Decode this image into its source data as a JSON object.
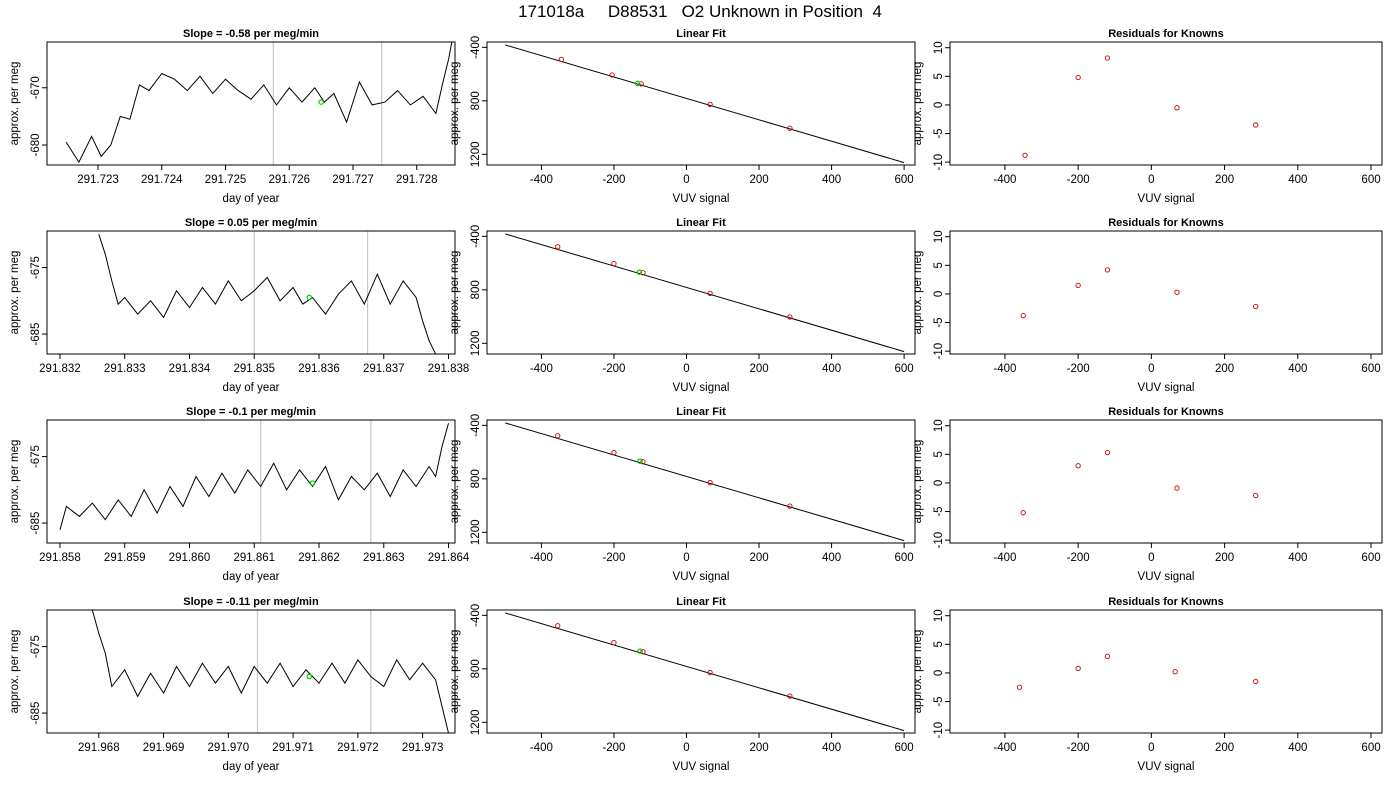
{
  "title": "171018a     D88531   O2 Unknown in Position  4",
  "colors": {
    "line": "#000000",
    "known_point": "#cc0000",
    "unknown_point": "#00cc00",
    "marker_line": "#c8c8c8",
    "axes": "#000000"
  },
  "chart_data": [
    {
      "type": "line",
      "title": "Slope =  -0.58  per meg/min",
      "xlabel": "day of year",
      "ylabel": "approx. per meg",
      "xlim": [
        291.7222,
        291.7286
      ],
      "ylim": [
        -683.5,
        -662.0
      ],
      "xticks": [
        291.723,
        291.724,
        291.725,
        291.726,
        291.727,
        291.728
      ],
      "xtick_labels": [
        "291.723",
        "291.724",
        "291.725",
        "291.726",
        "291.727",
        "291.728"
      ],
      "yticks": [
        -680,
        -670
      ],
      "ytick_labels": [
        "-680",
        "-670"
      ],
      "vlines": [
        291.72575,
        291.72745
      ],
      "unknown_point": {
        "x": 291.7265,
        "y": -672.5
      },
      "trace": [
        [
          291.7225,
          -679.5
        ],
        [
          291.7227,
          -683.0
        ],
        [
          291.7229,
          -678.5
        ],
        [
          291.72305,
          -682.0
        ],
        [
          291.7232,
          -680.0
        ],
        [
          291.72335,
          -675.0
        ],
        [
          291.7235,
          -675.5
        ],
        [
          291.72365,
          -669.5
        ],
        [
          291.7238,
          -670.5
        ],
        [
          291.724,
          -667.5
        ],
        [
          291.7242,
          -668.5
        ],
        [
          291.7244,
          -670.5
        ],
        [
          291.7246,
          -668.0
        ],
        [
          291.7248,
          -671.0
        ],
        [
          291.725,
          -668.5
        ],
        [
          291.7252,
          -670.5
        ],
        [
          291.7254,
          -672.0
        ],
        [
          291.7256,
          -669.5
        ],
        [
          291.7258,
          -673.0
        ],
        [
          291.726,
          -670.0
        ],
        [
          291.7262,
          -672.5
        ],
        [
          291.7264,
          -670.0
        ],
        [
          291.72655,
          -672.5
        ],
        [
          291.7267,
          -671.0
        ],
        [
          291.7269,
          -676.0
        ],
        [
          291.7271,
          -669.0
        ],
        [
          291.7273,
          -673.0
        ],
        [
          291.7275,
          -672.5
        ],
        [
          291.7277,
          -670.5
        ],
        [
          291.7279,
          -673.0
        ],
        [
          291.7281,
          -671.5
        ],
        [
          291.7283,
          -674.5
        ],
        [
          291.7284,
          -669.5
        ],
        [
          291.7285,
          -665.0
        ],
        [
          291.72855,
          -662.0
        ]
      ]
    },
    {
      "type": "scatter",
      "title": "Linear Fit",
      "xlabel": "VUV signal",
      "ylabel": "approx. per meg",
      "xlim": [
        -550,
        630
      ],
      "ylim": [
        -1280,
        -360
      ],
      "xticks": [
        -400,
        -200,
        0,
        200,
        400,
        600
      ],
      "xtick_labels": [
        "-400",
        "-200",
        "0",
        "200",
        "400",
        "600"
      ],
      "yticks": [
        -400,
        -800,
        -1200
      ],
      "ytick_labels": [
        "-400",
        "800",
        "1200"
      ],
      "fit_line": {
        "x": [
          -500,
          600
        ],
        "y": [
          -382,
          -1262
        ]
      },
      "knowns": {
        "x": [
          -345,
          -205,
          -125,
          65,
          285
        ],
        "y": [
          -490,
          -607,
          -673,
          -827,
          -1005
        ]
      },
      "unknown_point": {
        "x": -135,
        "y": -670
      }
    },
    {
      "type": "scatter",
      "title": "Residuals for Knowns",
      "xlabel": "VUV signal",
      "ylabel": "approx. per meg",
      "xlim": [
        -550,
        630
      ],
      "ylim": [
        -10.5,
        11.0
      ],
      "xticks": [
        -400,
        -200,
        0,
        200,
        400,
        600
      ],
      "xtick_labels": [
        "-400",
        "-200",
        "0",
        "200",
        "400",
        "600"
      ],
      "yticks": [
        -10,
        -5,
        0,
        5,
        10
      ],
      "ytick_labels": [
        "-10",
        "-5",
        "0",
        "5",
        "10"
      ],
      "knowns": {
        "x": [
          -345,
          -200,
          -120,
          70,
          285
        ],
        "y": [
          -8.8,
          4.8,
          8.2,
          -0.5,
          -3.5
        ]
      }
    },
    {
      "type": "line",
      "title": "Slope =  0.05  per meg/min",
      "xlabel": "day of year",
      "ylabel": "approx. per meg",
      "xlim": [
        291.8318,
        291.8381
      ],
      "ylim": [
        -688.0,
        -669.5
      ],
      "xticks": [
        291.832,
        291.833,
        291.834,
        291.835,
        291.836,
        291.837,
        291.838
      ],
      "xtick_labels": [
        "291.832",
        "291.833",
        "291.834",
        "291.835",
        "291.836",
        "291.837",
        "291.838"
      ],
      "yticks": [
        -685,
        -675
      ],
      "ytick_labels": [
        "-685",
        "-675"
      ],
      "vlines": [
        291.835,
        291.83675
      ],
      "unknown_point": {
        "x": 291.83585,
        "y": -679.5
      },
      "trace": [
        [
          291.8326,
          -670.0
        ],
        [
          291.8327,
          -673.0
        ],
        [
          291.8328,
          -677.0
        ],
        [
          291.8329,
          -680.5
        ],
        [
          291.833,
          -679.5
        ],
        [
          291.8332,
          -682.0
        ],
        [
          291.8334,
          -680.0
        ],
        [
          291.8336,
          -682.5
        ],
        [
          291.8338,
          -678.5
        ],
        [
          291.834,
          -681.0
        ],
        [
          291.8342,
          -678.0
        ],
        [
          291.8344,
          -680.5
        ],
        [
          291.8346,
          -677.0
        ],
        [
          291.8348,
          -680.0
        ],
        [
          291.835,
          -678.5
        ],
        [
          291.8352,
          -676.5
        ],
        [
          291.8354,
          -680.0
        ],
        [
          291.8356,
          -678.0
        ],
        [
          291.83575,
          -680.5
        ],
        [
          291.8359,
          -679.5
        ],
        [
          291.8361,
          -682.0
        ],
        [
          291.8363,
          -679.0
        ],
        [
          291.8365,
          -677.0
        ],
        [
          291.8367,
          -680.5
        ],
        [
          291.8369,
          -676.0
        ],
        [
          291.8371,
          -680.5
        ],
        [
          291.8373,
          -677.0
        ],
        [
          291.8375,
          -679.5
        ],
        [
          291.8376,
          -683.0
        ],
        [
          291.8377,
          -686.0
        ],
        [
          291.8378,
          -688.0
        ]
      ]
    },
    {
      "type": "scatter",
      "title": "Linear Fit",
      "xlabel": "VUV signal",
      "ylabel": "approx. per meg",
      "xlim": [
        -550,
        630
      ],
      "ylim": [
        -1280,
        -360
      ],
      "xticks": [
        -400,
        -200,
        0,
        200,
        400,
        600
      ],
      "xtick_labels": [
        "-400",
        "-200",
        "0",
        "200",
        "400",
        "600"
      ],
      "yticks": [
        -400,
        -800,
        -1200
      ],
      "ytick_labels": [
        "-400",
        "800",
        "1200"
      ],
      "fit_line": {
        "x": [
          -500,
          600
        ],
        "y": [
          -382,
          -1262
        ]
      },
      "knowns": {
        "x": [
          -355,
          -200,
          -120,
          65,
          285
        ],
        "y": [
          -478,
          -604,
          -672,
          -827,
          -1003
        ]
      },
      "unknown_point": {
        "x": -130,
        "y": -668
      }
    },
    {
      "type": "scatter",
      "title": "Residuals for Knowns",
      "xlabel": "VUV signal",
      "ylabel": "approx. per meg",
      "xlim": [
        -550,
        630
      ],
      "ylim": [
        -10.5,
        11.0
      ],
      "xticks": [
        -400,
        -200,
        0,
        200,
        400,
        600
      ],
      "xtick_labels": [
        "-400",
        "-200",
        "0",
        "200",
        "400",
        "600"
      ],
      "yticks": [
        -10,
        -5,
        0,
        5,
        10
      ],
      "ytick_labels": [
        "-10",
        "-5",
        "0",
        "5",
        "10"
      ],
      "knowns": {
        "x": [
          -350,
          -200,
          -120,
          70,
          285
        ],
        "y": [
          -3.8,
          1.5,
          4.2,
          0.3,
          -2.2
        ]
      }
    },
    {
      "type": "line",
      "title": "Slope =  -0.1  per meg/min",
      "xlabel": "day of year",
      "ylabel": "approx. per meg",
      "xlim": [
        291.8578,
        291.8641
      ],
      "ylim": [
        -688.0,
        -669.5
      ],
      "xticks": [
        291.858,
        291.859,
        291.86,
        291.861,
        291.862,
        291.863,
        291.864
      ],
      "xtick_labels": [
        "291.858",
        "291.859",
        "291.860",
        "291.861",
        "291.862",
        "291.863",
        "291.864"
      ],
      "yticks": [
        -685,
        -675
      ],
      "ytick_labels": [
        "-685",
        "-675"
      ],
      "vlines": [
        291.8611,
        291.8628
      ],
      "unknown_point": {
        "x": 291.8619,
        "y": -679.0
      },
      "trace": [
        [
          291.858,
          -686.0
        ],
        [
          291.8581,
          -682.5
        ],
        [
          291.8583,
          -684.0
        ],
        [
          291.8585,
          -682.0
        ],
        [
          291.8587,
          -684.5
        ],
        [
          291.8589,
          -681.5
        ],
        [
          291.8591,
          -684.0
        ],
        [
          291.8593,
          -680.0
        ],
        [
          291.8595,
          -683.5
        ],
        [
          291.8597,
          -679.5
        ],
        [
          291.8599,
          -682.5
        ],
        [
          291.8601,
          -678.0
        ],
        [
          291.8603,
          -681.0
        ],
        [
          291.8605,
          -677.5
        ],
        [
          291.8607,
          -680.5
        ],
        [
          291.8609,
          -677.0
        ],
        [
          291.8611,
          -679.5
        ],
        [
          291.8613,
          -676.0
        ],
        [
          291.8615,
          -680.0
        ],
        [
          291.8617,
          -677.0
        ],
        [
          291.8619,
          -679.5
        ],
        [
          291.8621,
          -676.5
        ],
        [
          291.8623,
          -681.5
        ],
        [
          291.8625,
          -678.0
        ],
        [
          291.8627,
          -680.0
        ],
        [
          291.8629,
          -677.5
        ],
        [
          291.8631,
          -681.0
        ],
        [
          291.8633,
          -677.0
        ],
        [
          291.8635,
          -679.5
        ],
        [
          291.8637,
          -676.5
        ],
        [
          291.8638,
          -678.0
        ],
        [
          291.8639,
          -673.5
        ],
        [
          291.864,
          -670.0
        ]
      ]
    },
    {
      "type": "scatter",
      "title": "Linear Fit",
      "xlabel": "VUV signal",
      "ylabel": "approx. per meg",
      "xlim": [
        -550,
        630
      ],
      "ylim": [
        -1280,
        -360
      ],
      "xticks": [
        -400,
        -200,
        0,
        200,
        400,
        600
      ],
      "xtick_labels": [
        "-400",
        "-200",
        "0",
        "200",
        "400",
        "600"
      ],
      "yticks": [
        -400,
        -800,
        -1200
      ],
      "ytick_labels": [
        "-400",
        "800",
        "1200"
      ],
      "fit_line": {
        "x": [
          -500,
          600
        ],
        "y": [
          -382,
          -1262
        ]
      },
      "knowns": {
        "x": [
          -355,
          -200,
          -120,
          65,
          285
        ],
        "y": [
          -478,
          -604,
          -672,
          -828,
          -1004
        ]
      },
      "unknown_point": {
        "x": -128,
        "y": -668
      }
    },
    {
      "type": "scatter",
      "title": "Residuals for Knowns",
      "xlabel": "VUV signal",
      "ylabel": "approx. per meg",
      "xlim": [
        -550,
        630
      ],
      "ylim": [
        -10.5,
        11.0
      ],
      "xticks": [
        -400,
        -200,
        0,
        200,
        400,
        600
      ],
      "xtick_labels": [
        "-400",
        "-200",
        "0",
        "200",
        "400",
        "600"
      ],
      "yticks": [
        -10,
        -5,
        0,
        5,
        10
      ],
      "ytick_labels": [
        "-10",
        "-5",
        "0",
        "5",
        "10"
      ],
      "knowns": {
        "x": [
          -350,
          -200,
          -120,
          70,
          285
        ],
        "y": [
          -5.2,
          3.0,
          5.3,
          -0.9,
          -2.2
        ]
      }
    },
    {
      "type": "line",
      "title": "Slope =  -0.11  per meg/min",
      "xlabel": "day of year",
      "ylabel": "approx. per meg",
      "xlim": [
        291.9672,
        291.9735
      ],
      "ylim": [
        -688.0,
        -669.5
      ],
      "xticks": [
        291.968,
        291.969,
        291.97,
        291.971,
        291.972,
        291.973
      ],
      "xtick_labels": [
        "291.968",
        "291.969",
        "291.970",
        "291.971",
        "291.972",
        "291.973"
      ],
      "yticks": [
        -685,
        -675
      ],
      "ytick_labels": [
        "-685",
        "-675"
      ],
      "vlines": [
        291.97045,
        291.9722
      ],
      "unknown_point": {
        "x": 291.97125,
        "y": -679.5
      },
      "trace": [
        [
          291.9679,
          -669.5
        ],
        [
          291.968,
          -673.0
        ],
        [
          291.9681,
          -676.0
        ],
        [
          291.9682,
          -681.0
        ],
        [
          291.9684,
          -678.5
        ],
        [
          291.9686,
          -682.5
        ],
        [
          291.9688,
          -679.0
        ],
        [
          291.969,
          -682.0
        ],
        [
          291.9692,
          -678.0
        ],
        [
          291.9694,
          -681.0
        ],
        [
          291.9696,
          -677.5
        ],
        [
          291.9698,
          -680.5
        ],
        [
          291.97,
          -678.0
        ],
        [
          291.9702,
          -682.0
        ],
        [
          291.9704,
          -678.0
        ],
        [
          291.9706,
          -680.5
        ],
        [
          291.9708,
          -677.5
        ],
        [
          291.971,
          -681.0
        ],
        [
          291.9712,
          -678.5
        ],
        [
          291.9714,
          -680.5
        ],
        [
          291.9716,
          -677.5
        ],
        [
          291.9718,
          -680.5
        ],
        [
          291.972,
          -677.0
        ],
        [
          291.9722,
          -679.5
        ],
        [
          291.9724,
          -681.0
        ],
        [
          291.9726,
          -677.0
        ],
        [
          291.9728,
          -680.0
        ],
        [
          291.973,
          -677.5
        ],
        [
          291.9732,
          -680.0
        ],
        [
          291.9733,
          -684.0
        ],
        [
          291.9734,
          -688.0
        ]
      ]
    },
    {
      "type": "scatter",
      "title": "Linear Fit",
      "xlabel": "VUV signal",
      "ylabel": "approx. per meg",
      "xlim": [
        -550,
        630
      ],
      "ylim": [
        -1280,
        -360
      ],
      "xticks": [
        -400,
        -200,
        0,
        200,
        400,
        600
      ],
      "xtick_labels": [
        "-400",
        "-200",
        "0",
        "200",
        "400",
        "600"
      ],
      "yticks": [
        -400,
        -800,
        -1200
      ],
      "ytick_labels": [
        "-400",
        "800",
        "1200"
      ],
      "fit_line": {
        "x": [
          -500,
          600
        ],
        "y": [
          -382,
          -1262
        ]
      },
      "knowns": {
        "x": [
          -355,
          -200,
          -120,
          65,
          285
        ],
        "y": [
          -478,
          -604,
          -672,
          -828,
          -1004
        ]
      },
      "unknown_point": {
        "x": -128,
        "y": -668
      }
    },
    {
      "type": "scatter",
      "title": "Residuals for Knowns",
      "xlabel": "VUV signal",
      "ylabel": "approx. per meg",
      "xlim": [
        -550,
        630
      ],
      "ylim": [
        -10.5,
        11.0
      ],
      "xticks": [
        -400,
        -200,
        0,
        200,
        400,
        600
      ],
      "xtick_labels": [
        "-400",
        "-200",
        "0",
        "200",
        "400",
        "600"
      ],
      "yticks": [
        -10,
        -5,
        0,
        5,
        10
      ],
      "ytick_labels": [
        "-10",
        "-5",
        "0",
        "5",
        "10"
      ],
      "knowns": {
        "x": [
          -360,
          -200,
          -120,
          65,
          285
        ],
        "y": [
          -2.5,
          0.8,
          2.9,
          0.2,
          -1.5
        ]
      }
    }
  ]
}
